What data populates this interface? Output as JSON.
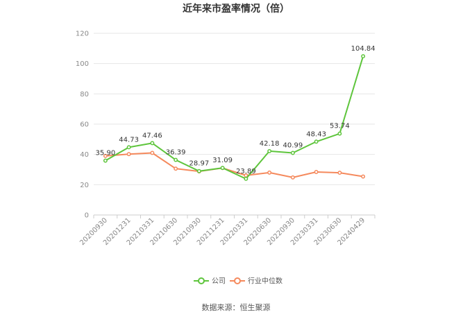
{
  "chart_data": {
    "type": "line",
    "title": "近年来市盈率情况（倍）",
    "categories": [
      "20200930",
      "20201231",
      "20210331",
      "20210630",
      "20210930",
      "20211231",
      "20220331",
      "20220630",
      "20220930",
      "20230331",
      "20230630",
      "20240429"
    ],
    "ylim": [
      0,
      120
    ],
    "yticks": [
      0,
      20,
      40,
      60,
      80,
      100,
      120
    ],
    "grid": true,
    "legend_position": "bottom",
    "series": [
      {
        "name": "公司",
        "color": "#5ec53c",
        "values": [
          35.9,
          44.73,
          47.46,
          36.39,
          28.97,
          31.09,
          23.89,
          42.18,
          40.99,
          48.43,
          53.74,
          104.84
        ],
        "labels": [
          "35.90",
          "44.73",
          "47.46",
          "36.39",
          "28.97",
          "31.09",
          "23.89",
          "42.18",
          "40.99",
          "48.43",
          "53.74",
          "104.84"
        ]
      },
      {
        "name": "行业中位数",
        "color": "#f5895c",
        "values": [
          39.0,
          40.2,
          41.0,
          30.6,
          28.8,
          31.0,
          26.1,
          28.0,
          24.8,
          28.4,
          27.9,
          25.4
        ]
      }
    ]
  },
  "source": "数据来源：恒生聚源"
}
